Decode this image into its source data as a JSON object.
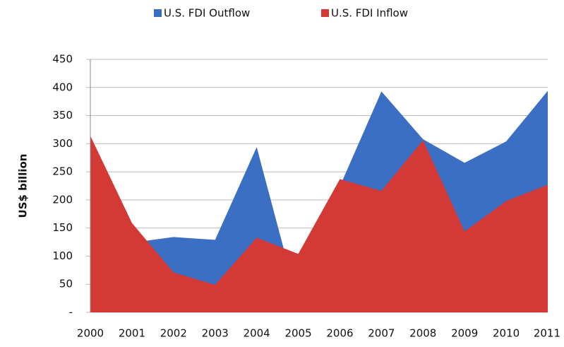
{
  "chart_data": {
    "type": "area",
    "y_label": "US$ billion",
    "categories": [
      "2000",
      "2001",
      "2002",
      "2003",
      "2004",
      "2005",
      "2006",
      "2007",
      "2008",
      "2009",
      "2010",
      "2011"
    ],
    "series": [
      {
        "name": "U.S. FDI Outflow",
        "color": "#3b6fc4",
        "values": [
          143,
          124,
          134,
          129,
          294,
          16,
          224,
          393,
          308,
          266,
          304,
          394
        ]
      },
      {
        "name": "U.S. FDI Inflow",
        "color": "#d33a36",
        "values": [
          314,
          159,
          71,
          49,
          133,
          104,
          237,
          216,
          306,
          144,
          198,
          227
        ]
      }
    ],
    "ylim": [
      0,
      450
    ],
    "yticks": [
      {
        "value": 0,
        "label": "-"
      },
      50,
      100,
      150,
      200,
      250,
      300,
      350,
      400,
      450
    ],
    "grid": true,
    "legend": "top"
  }
}
